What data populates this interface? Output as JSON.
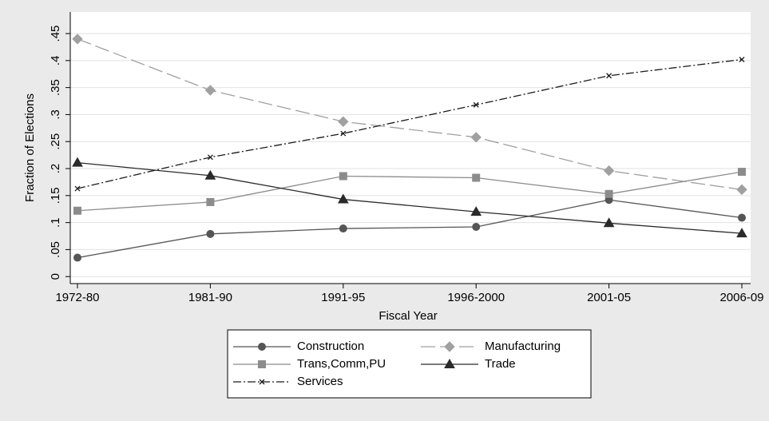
{
  "chart_data": {
    "type": "line",
    "x_label": "Fiscal Year",
    "y_label": "Fraction of Elections",
    "categories": [
      "1972-80",
      "1981-90",
      "1991-95",
      "1996-2000",
      "2001-05",
      "2006-09"
    ],
    "ylim": [
      -0.013,
      0.49
    ],
    "yticks": [
      {
        "value": 0,
        "label": "0"
      },
      {
        "value": 0.05,
        "label": ".05"
      },
      {
        "value": 0.1,
        "label": ".1"
      },
      {
        "value": 0.15,
        "label": ".15"
      },
      {
        "value": 0.2,
        "label": ".2"
      },
      {
        "value": 0.25,
        "label": ".25"
      },
      {
        "value": 0.3,
        "label": ".3"
      },
      {
        "value": 0.35,
        "label": ".35"
      },
      {
        "value": 0.4,
        "label": ".4"
      },
      {
        "value": 0.45,
        "label": ".45"
      }
    ],
    "grid": true,
    "legend": "bottom",
    "series": [
      {
        "name": "Construction",
        "color": "#555555",
        "marker": "circle",
        "dash": "none",
        "values": [
          0.035,
          0.079,
          0.089,
          0.092,
          0.142,
          0.109
        ]
      },
      {
        "name": "Manufacturing",
        "color": "#a0a0a0",
        "marker": "diamond",
        "dash": "longdash",
        "values": [
          0.44,
          0.345,
          0.287,
          0.258,
          0.196,
          0.161
        ]
      },
      {
        "name": "Trans,Comm,PU",
        "color": "#8c8c8c",
        "marker": "square",
        "dash": "none",
        "values": [
          0.122,
          0.138,
          0.186,
          0.183,
          0.153,
          0.194
        ]
      },
      {
        "name": "Trade",
        "color": "#2a2a2a",
        "marker": "triangle",
        "dash": "none",
        "values": [
          0.211,
          0.187,
          0.143,
          0.12,
          0.099,
          0.08
        ]
      },
      {
        "name": "Services",
        "color": "#1a1a1a",
        "marker": "x",
        "dash": "dashdot",
        "values": [
          0.163,
          0.221,
          0.265,
          0.318,
          0.372,
          0.402
        ]
      }
    ]
  }
}
